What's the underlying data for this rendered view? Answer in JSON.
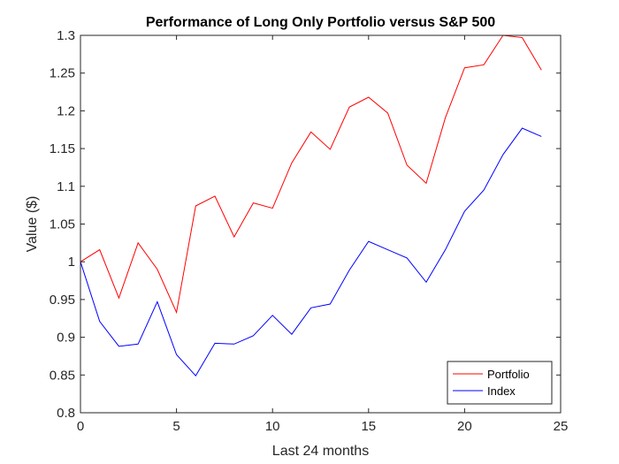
{
  "chart_data": {
    "type": "line",
    "title": "Performance of Long Only Portfolio versus S&P 500",
    "xlabel": "Last 24 months",
    "ylabel": "Value ($)",
    "xlim": [
      0,
      25
    ],
    "ylim": [
      0.8,
      1.3
    ],
    "xticks": [
      0,
      5,
      10,
      15,
      20,
      25
    ],
    "yticks": [
      0.8,
      0.85,
      0.9,
      0.95,
      1,
      1.05,
      1.1,
      1.15,
      1.2,
      1.25,
      1.3
    ],
    "xtick_labels": [
      "0",
      "5",
      "10",
      "15",
      "20",
      "25"
    ],
    "ytick_labels": [
      "0.8",
      "0.85",
      "0.9",
      "0.95",
      "1",
      "1.05",
      "1.1",
      "1.15",
      "1.2",
      "1.25",
      "1.3"
    ],
    "grid": false,
    "legend_position": "bottom-right",
    "x": [
      0,
      1,
      2,
      3,
      4,
      5,
      6,
      7,
      8,
      9,
      10,
      11,
      12,
      13,
      14,
      15,
      16,
      17,
      18,
      19,
      20,
      21,
      22,
      23,
      24
    ],
    "series": [
      {
        "name": "Portfolio",
        "color": "#ff0000",
        "values": [
          1.0,
          1.016,
          0.952,
          1.025,
          0.99,
          0.933,
          1.074,
          1.087,
          1.033,
          1.078,
          1.071,
          1.131,
          1.172,
          1.149,
          1.205,
          1.218,
          1.197,
          1.128,
          1.104,
          1.191,
          1.257,
          1.261,
          1.3,
          1.297,
          1.254
        ]
      },
      {
        "name": "Index",
        "color": "#0000ff",
        "values": [
          1.0,
          0.921,
          0.888,
          0.891,
          0.947,
          0.877,
          0.849,
          0.892,
          0.891,
          0.902,
          0.929,
          0.904,
          0.939,
          0.944,
          0.989,
          1.027,
          1.016,
          1.005,
          0.973,
          1.016,
          1.067,
          1.095,
          1.142,
          1.177,
          1.166
        ]
      }
    ]
  }
}
